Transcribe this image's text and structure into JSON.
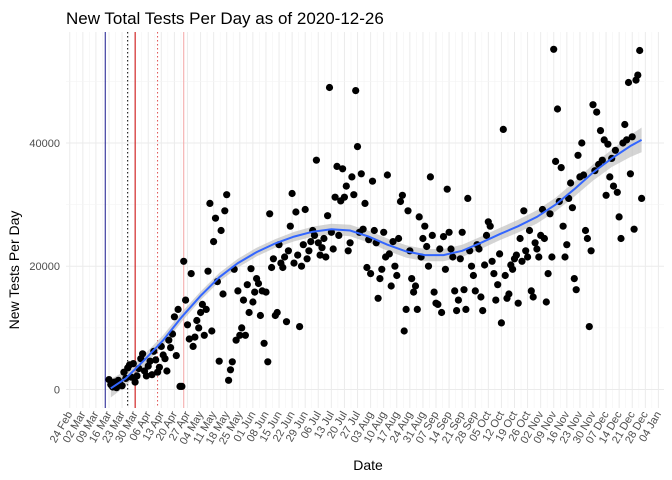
{
  "colors": {
    "points": "#000000",
    "smooth_line": "#3366ff",
    "smooth_band": "#bdbdbd",
    "vline_navy": "#1a1a8c",
    "vline_red": "#cc0000",
    "vline_dotted_black": "#000000",
    "vline_dotted_red": "#e05050",
    "vline_pink": "#f4a6a6",
    "grid_major": "#ebebeb",
    "grid_minor": "#f4f4f4",
    "tick_text": "#4d4d4d"
  },
  "chart_data": {
    "type": "scatter",
    "title": "New Total Tests Per Day as of 2020-12-26",
    "xlabel": "Date",
    "ylabel": "New Tests Per Day",
    "x_tick_labels": [
      "24 Feb",
      "02 Mar",
      "09 Mar",
      "16 Mar",
      "23 Mar",
      "30 Mar",
      "06 Apr",
      "13 Apr",
      "20 Apr",
      "27 Apr",
      "04 May",
      "11 May",
      "18 May",
      "25 May",
      "01 Jun",
      "08 Jun",
      "15 Jun",
      "22 Jun",
      "29 Jun",
      "06 Jul",
      "13 Jul",
      "20 Jul",
      "27 Jul",
      "03 Aug",
      "10 Aug",
      "17 Aug",
      "24 Aug",
      "31 Aug",
      "07 Sep",
      "14 Sep",
      "21 Sep",
      "28 Sep",
      "05 Oct",
      "12 Oct",
      "19 Oct",
      "26 Oct",
      "02 Nov",
      "09 Nov",
      "16 Nov",
      "23 Nov",
      "30 Nov",
      "07 Dec",
      "14 Dec",
      "21 Dec",
      "28 Dec",
      "04 Jan"
    ],
    "xlim_days": [
      -2,
      318
    ],
    "y_tick_values": [
      0,
      20000,
      40000
    ],
    "y_tick_labels": [
      "0",
      "20000",
      "40000"
    ],
    "ylim": [
      -3000,
      58000
    ],
    "grid": true,
    "legend": "none",
    "vertical_lines": [
      {
        "day": 19,
        "style": "solid",
        "color_key": "vline_navy"
      },
      {
        "day": 35,
        "style": "solid",
        "color_key": "vline_red"
      },
      {
        "day": 31,
        "style": "dotted",
        "color_key": "vline_dotted_black"
      },
      {
        "day": 47,
        "style": "dotted",
        "color_key": "vline_dotted_red"
      },
      {
        "day": 61,
        "style": "solid",
        "color_key": "vline_pink"
      }
    ],
    "points": [
      [
        21,
        1600
      ],
      [
        22,
        800
      ],
      [
        23,
        400
      ],
      [
        24,
        1200
      ],
      [
        25,
        300
      ],
      [
        26,
        1500
      ],
      [
        27,
        900
      ],
      [
        28,
        600
      ],
      [
        29,
        2800
      ],
      [
        30,
        1800
      ],
      [
        31,
        3500
      ],
      [
        32,
        4000
      ],
      [
        33,
        2000
      ],
      [
        34,
        4200
      ],
      [
        35,
        1200
      ],
      [
        36,
        2200
      ],
      [
        37,
        3400
      ],
      [
        38,
        5000
      ],
      [
        39,
        5800
      ],
      [
        40,
        3000
      ],
      [
        41,
        2200
      ],
      [
        42,
        3800
      ],
      [
        43,
        4600
      ],
      [
        44,
        2400
      ],
      [
        45,
        6200
      ],
      [
        46,
        4800
      ],
      [
        47,
        2800
      ],
      [
        48,
        3600
      ],
      [
        49,
        7000
      ],
      [
        50,
        5600
      ],
      [
        51,
        5000
      ],
      [
        52,
        3000
      ],
      [
        53,
        8000
      ],
      [
        54,
        6800
      ],
      [
        55,
        9000
      ],
      [
        56,
        11800
      ],
      [
        57,
        5500
      ],
      [
        58,
        13000
      ],
      [
        59,
        500
      ],
      [
        60,
        500
      ],
      [
        61,
        20800
      ],
      [
        62,
        14500
      ],
      [
        63,
        10500
      ],
      [
        64,
        8200
      ],
      [
        65,
        18800
      ],
      [
        66,
        7000
      ],
      [
        67,
        8500
      ],
      [
        68,
        11200
      ],
      [
        69,
        10000
      ],
      [
        70,
        12500
      ],
      [
        71,
        13800
      ],
      [
        72,
        8800
      ],
      [
        73,
        13000
      ],
      [
        74,
        19200
      ],
      [
        75,
        30200
      ],
      [
        76,
        9500
      ],
      [
        77,
        24000
      ],
      [
        78,
        27800
      ],
      [
        79,
        17500
      ],
      [
        80,
        4600
      ],
      [
        81,
        25800
      ],
      [
        82,
        15500
      ],
      [
        83,
        29000
      ],
      [
        84,
        31600
      ],
      [
        85,
        1500
      ],
      [
        86,
        3200
      ],
      [
        87,
        4500
      ],
      [
        88,
        19500
      ],
      [
        89,
        8000
      ],
      [
        90,
        16000
      ],
      [
        91,
        8800
      ],
      [
        92,
        10000
      ],
      [
        93,
        14500
      ],
      [
        94,
        8800
      ],
      [
        95,
        17000
      ],
      [
        96,
        12500
      ],
      [
        97,
        19600
      ],
      [
        98,
        14200
      ],
      [
        99,
        15800
      ],
      [
        100,
        18000
      ],
      [
        101,
        17200
      ],
      [
        102,
        12000
      ],
      [
        103,
        16000
      ],
      [
        104,
        7500
      ],
      [
        105,
        15800
      ],
      [
        106,
        4500
      ],
      [
        107,
        28500
      ],
      [
        108,
        19800
      ],
      [
        109,
        21200
      ],
      [
        110,
        12000
      ],
      [
        111,
        12500
      ],
      [
        112,
        23500
      ],
      [
        113,
        20500
      ],
      [
        114,
        19800
      ],
      [
        115,
        21500
      ],
      [
        116,
        11000
      ],
      [
        117,
        22500
      ],
      [
        118,
        26500
      ],
      [
        119,
        31800
      ],
      [
        120,
        20500
      ],
      [
        121,
        28800
      ],
      [
        122,
        21800
      ],
      [
        123,
        10200
      ],
      [
        124,
        20000
      ],
      [
        125,
        23500
      ],
      [
        126,
        29200
      ],
      [
        127,
        21200
      ],
      [
        128,
        22500
      ],
      [
        129,
        24000
      ],
      [
        130,
        25800
      ],
      [
        131,
        25000
      ],
      [
        132,
        37200
      ],
      [
        133,
        23800
      ],
      [
        134,
        21800
      ],
      [
        135,
        23000
      ],
      [
        136,
        24500
      ],
      [
        137,
        21500
      ],
      [
        138,
        28200
      ],
      [
        139,
        49000
      ],
      [
        140,
        25500
      ],
      [
        141,
        22800
      ],
      [
        142,
        31200
      ],
      [
        143,
        36200
      ],
      [
        144,
        25000
      ],
      [
        145,
        30600
      ],
      [
        146,
        35800
      ],
      [
        147,
        31200
      ],
      [
        148,
        33000
      ],
      [
        149,
        22500
      ],
      [
        150,
        23800
      ],
      [
        151,
        34500
      ],
      [
        152,
        31600
      ],
      [
        153,
        48500
      ],
      [
        154,
        39400
      ],
      [
        155,
        25500
      ],
      [
        156,
        35000
      ],
      [
        157,
        26000
      ],
      [
        158,
        30200
      ],
      [
        159,
        19800
      ],
      [
        160,
        24300
      ],
      [
        161,
        18800
      ],
      [
        162,
        33800
      ],
      [
        163,
        25800
      ],
      [
        164,
        23800
      ],
      [
        165,
        14800
      ],
      [
        166,
        18000
      ],
      [
        167,
        19500
      ],
      [
        168,
        25500
      ],
      [
        169,
        21500
      ],
      [
        170,
        34800
      ],
      [
        171,
        22000
      ],
      [
        172,
        16800
      ],
      [
        173,
        24000
      ],
      [
        174,
        20000
      ],
      [
        175,
        18500
      ],
      [
        176,
        24500
      ],
      [
        177,
        30500
      ],
      [
        178,
        31500
      ],
      [
        179,
        9500
      ],
      [
        180,
        13000
      ],
      [
        181,
        29000
      ],
      [
        182,
        22500
      ],
      [
        183,
        18000
      ],
      [
        184,
        15800
      ],
      [
        185,
        16800
      ],
      [
        186,
        13000
      ],
      [
        187,
        28000
      ],
      [
        188,
        21500
      ],
      [
        189,
        24500
      ],
      [
        190,
        26500
      ],
      [
        191,
        23200
      ],
      [
        192,
        20000
      ],
      [
        193,
        34500
      ],
      [
        194,
        25000
      ],
      [
        195,
        15800
      ],
      [
        196,
        14000
      ],
      [
        197,
        13800
      ],
      [
        198,
        22800
      ],
      [
        199,
        12500
      ],
      [
        200,
        24800
      ],
      [
        201,
        19500
      ],
      [
        202,
        32500
      ],
      [
        203,
        25500
      ],
      [
        204,
        22800
      ],
      [
        205,
        21500
      ],
      [
        206,
        16000
      ],
      [
        207,
        12800
      ],
      [
        208,
        14500
      ],
      [
        209,
        21200
      ],
      [
        210,
        25500
      ],
      [
        211,
        16200
      ],
      [
        212,
        13000
      ],
      [
        213,
        31000
      ],
      [
        214,
        22500
      ],
      [
        215,
        20000
      ],
      [
        216,
        18500
      ],
      [
        217,
        16000
      ],
      [
        218,
        23500
      ],
      [
        219,
        22800
      ],
      [
        220,
        15000
      ],
      [
        221,
        12800
      ],
      [
        222,
        20200
      ],
      [
        223,
        25000
      ],
      [
        224,
        27200
      ],
      [
        225,
        26500
      ],
      [
        226,
        20800
      ],
      [
        227,
        18800
      ],
      [
        228,
        14500
      ],
      [
        229,
        17000
      ],
      [
        230,
        22000
      ],
      [
        231,
        10800
      ],
      [
        232,
        42200
      ],
      [
        233,
        18500
      ],
      [
        234,
        14800
      ],
      [
        235,
        15500
      ],
      [
        236,
        20200
      ],
      [
        237,
        19500
      ],
      [
        238,
        21200
      ],
      [
        239,
        21800
      ],
      [
        240,
        14000
      ],
      [
        241,
        24500
      ],
      [
        242,
        20800
      ],
      [
        243,
        29000
      ],
      [
        244,
        22500
      ],
      [
        245,
        21500
      ],
      [
        246,
        25800
      ],
      [
        247,
        16000
      ],
      [
        248,
        15000
      ],
      [
        249,
        23800
      ],
      [
        250,
        22800
      ],
      [
        251,
        21500
      ],
      [
        252,
        25000
      ],
      [
        253,
        29200
      ],
      [
        254,
        24500
      ],
      [
        255,
        14200
      ],
      [
        256,
        18800
      ],
      [
        257,
        28500
      ],
      [
        258,
        21500
      ],
      [
        259,
        55200
      ],
      [
        260,
        37000
      ],
      [
        261,
        45500
      ],
      [
        262,
        30500
      ],
      [
        263,
        36000
      ],
      [
        264,
        26500
      ],
      [
        265,
        21500
      ],
      [
        266,
        23500
      ],
      [
        267,
        31000
      ],
      [
        268,
        33500
      ],
      [
        269,
        29500
      ],
      [
        270,
        18000
      ],
      [
        271,
        16200
      ],
      [
        272,
        38000
      ],
      [
        273,
        34500
      ],
      [
        274,
        40000
      ],
      [
        275,
        34800
      ],
      [
        276,
        25800
      ],
      [
        277,
        24500
      ],
      [
        278,
        10200
      ],
      [
        279,
        22500
      ],
      [
        280,
        46200
      ],
      [
        281,
        35500
      ],
      [
        282,
        45000
      ],
      [
        283,
        36500
      ],
      [
        284,
        42000
      ],
      [
        285,
        37200
      ],
      [
        286,
        40500
      ],
      [
        287,
        31500
      ],
      [
        288,
        39800
      ],
      [
        289,
        34500
      ],
      [
        290,
        37500
      ],
      [
        291,
        33000
      ],
      [
        292,
        38800
      ],
      [
        293,
        32000
      ],
      [
        294,
        28000
      ],
      [
        295,
        24500
      ],
      [
        296,
        40000
      ],
      [
        297,
        43000
      ],
      [
        298,
        40500
      ],
      [
        299,
        49800
      ],
      [
        300,
        35000
      ],
      [
        301,
        41000
      ],
      [
        302,
        26000
      ],
      [
        303,
        50200
      ],
      [
        304,
        51000
      ],
      [
        305,
        55000
      ],
      [
        306,
        31000
      ]
    ],
    "smooth_fit": [
      [
        22,
        200
      ],
      [
        30,
        1800
      ],
      [
        40,
        4800
      ],
      [
        50,
        8000
      ],
      [
        60,
        11800
      ],
      [
        70,
        15200
      ],
      [
        80,
        18200
      ],
      [
        90,
        20500
      ],
      [
        100,
        22300
      ],
      [
        110,
        23700
      ],
      [
        120,
        24800
      ],
      [
        130,
        25600
      ],
      [
        140,
        26000
      ],
      [
        150,
        25800
      ],
      [
        160,
        24800
      ],
      [
        170,
        23500
      ],
      [
        180,
        22400
      ],
      [
        190,
        21800
      ],
      [
        200,
        21800
      ],
      [
        210,
        22500
      ],
      [
        220,
        23800
      ],
      [
        230,
        25200
      ],
      [
        240,
        26500
      ],
      [
        250,
        28000
      ],
      [
        260,
        30000
      ],
      [
        270,
        32500
      ],
      [
        280,
        35200
      ],
      [
        290,
        37500
      ],
      [
        300,
        39500
      ],
      [
        306,
        40500
      ]
    ],
    "band_halfwidth": [
      [
        22,
        1500
      ],
      [
        40,
        900
      ],
      [
        70,
        700
      ],
      [
        110,
        700
      ],
      [
        140,
        900
      ],
      [
        170,
        1000
      ],
      [
        200,
        1000
      ],
      [
        230,
        1000
      ],
      [
        260,
        1100
      ],
      [
        290,
        1400
      ],
      [
        306,
        2000
      ]
    ]
  }
}
